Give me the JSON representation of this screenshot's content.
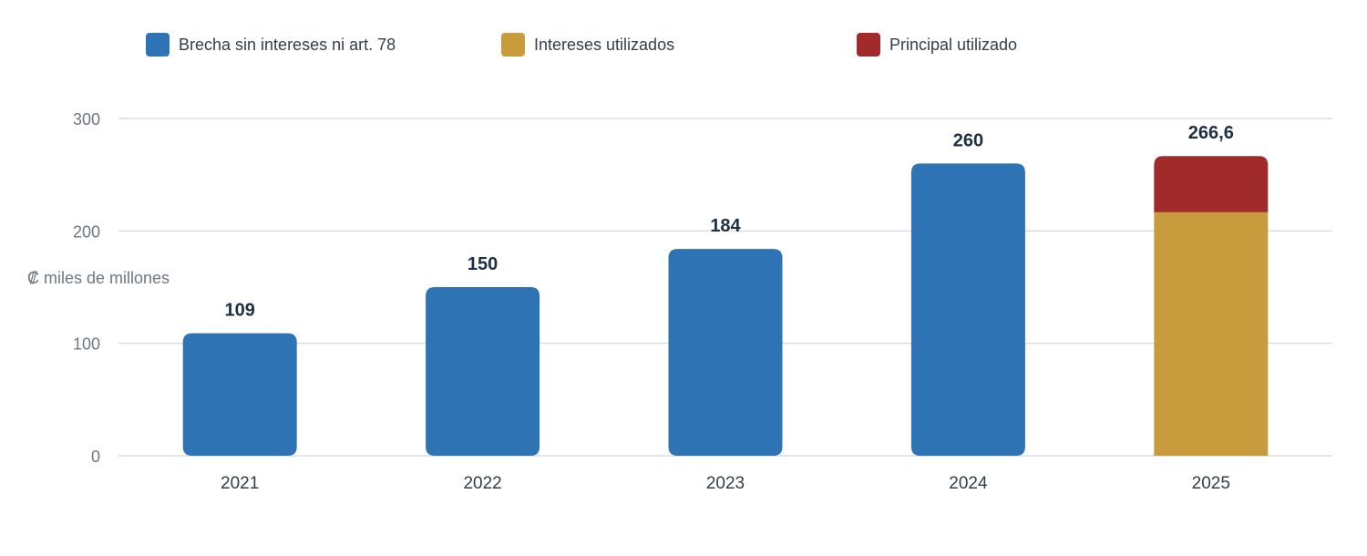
{
  "chart_data": {
    "type": "bar",
    "stacked": true,
    "categories": [
      "2021",
      "2022",
      "2023",
      "2024",
      "2025"
    ],
    "series": [
      {
        "name": "Brecha sin intereses ni art. 78",
        "values": [
          109,
          150,
          184,
          260,
          0
        ],
        "color": "#2e74b5"
      },
      {
        "name": "Intereses utilizados",
        "values": [
          0,
          0,
          0,
          0,
          216.6
        ],
        "color": "#c89b3c"
      },
      {
        "name": "Principal utilizado",
        "values": [
          0,
          0,
          0,
          0,
          50
        ],
        "color": "#a12a2a"
      }
    ],
    "totals": [
      "109",
      "150",
      "184",
      "260",
      "266,6"
    ],
    "ylabel": "₡ miles de millones",
    "yticks": [
      0,
      100,
      200,
      300
    ],
    "ylim": [
      0,
      300
    ],
    "grid": true,
    "legend_position": "top"
  }
}
